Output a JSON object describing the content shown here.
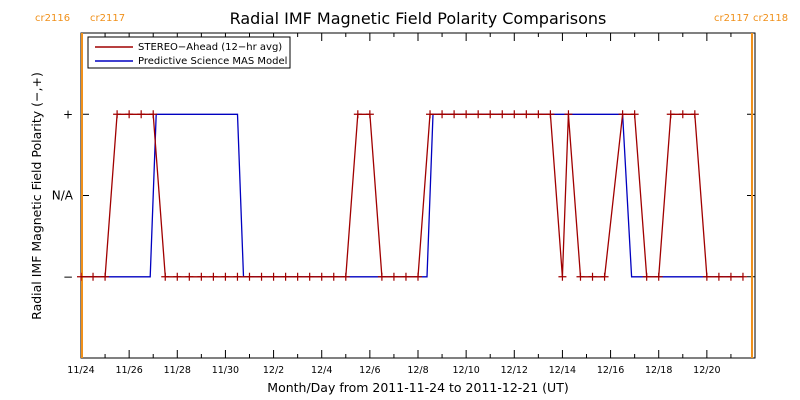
{
  "chart_data": {
    "type": "line",
    "title": "Radial IMF Magnetic Field Polarity Comparisons",
    "xlabel": "Month/Day from 2011-11-24 to 2011-12-21 (UT)",
    "ylabel": "Radial IMF Magnetic Field Polarity (−,+)",
    "x_unit": "days",
    "xlim": [
      "2011-11-24T00:00",
      "2011-12-22T00:00"
    ],
    "x_tick_values": [
      "2011-11-24",
      "2011-11-26",
      "2011-11-28",
      "2011-11-30",
      "2011-12-02",
      "2011-12-04",
      "2011-12-06",
      "2011-12-08",
      "2011-12-10",
      "2011-12-12",
      "2011-12-14",
      "2011-12-16",
      "2011-12-18",
      "2011-12-20"
    ],
    "x_tick_labels": [
      "11/24",
      "11/26",
      "11/28",
      "11/30",
      "12/2",
      "12/4",
      "12/6",
      "12/8",
      "12/10",
      "12/12",
      "12/14",
      "12/16",
      "12/18",
      "12/20"
    ],
    "y_ticks": [
      {
        "value": -1,
        "label": "−"
      },
      {
        "value": 0,
        "label": "N/A"
      },
      {
        "value": 1,
        "label": "+"
      }
    ],
    "ylim": [
      -2,
      2
    ],
    "legend_position": "top-left",
    "carrington_markers": [
      {
        "date": "2011-11-24T01:00",
        "left": "cr2116",
        "right": "cr2117",
        "label_side": "left"
      },
      {
        "date": "2011-12-21T21:00",
        "left": "cr2117",
        "right": "cr2118",
        "label_side": "right"
      }
    ],
    "series": [
      {
        "name": "STEREO−Ahead (12−hr avg)",
        "color": "#a00000",
        "marker": "plus",
        "points": [
          [
            "2011-11-24T00:00",
            -1
          ],
          [
            "2011-11-24T12:00",
            -1
          ],
          [
            "2011-11-25T00:00",
            -1
          ],
          [
            "2011-11-25T12:00",
            1
          ],
          [
            "2011-11-26T00:00",
            1
          ],
          [
            "2011-11-26T12:00",
            1
          ],
          [
            "2011-11-27T00:00",
            1
          ],
          [
            "2011-11-27T12:00",
            -1
          ],
          [
            "2011-11-28T00:00",
            -1
          ],
          [
            "2011-11-28T12:00",
            -1
          ],
          [
            "2011-11-29T00:00",
            -1
          ],
          [
            "2011-11-29T12:00",
            -1
          ],
          [
            "2011-11-30T00:00",
            -1
          ],
          [
            "2011-11-30T12:00",
            -1
          ],
          [
            "2011-12-01T00:00",
            -1
          ],
          [
            "2011-12-01T12:00",
            -1
          ],
          [
            "2011-12-02T00:00",
            -1
          ],
          [
            "2011-12-02T12:00",
            -1
          ],
          [
            "2011-12-03T00:00",
            -1
          ],
          [
            "2011-12-03T12:00",
            -1
          ],
          [
            "2011-12-04T00:00",
            -1
          ],
          [
            "2011-12-04T12:00",
            -1
          ],
          [
            "2011-12-05T00:00",
            -1
          ],
          [
            "2011-12-05T12:00",
            1
          ],
          [
            "2011-12-06T00:00",
            1
          ],
          [
            "2011-12-06T12:00",
            -1
          ],
          [
            "2011-12-07T00:00",
            -1
          ],
          [
            "2011-12-07T12:00",
            -1
          ],
          [
            "2011-12-08T00:00",
            -1
          ],
          [
            "2011-12-08T12:00",
            1
          ],
          [
            "2011-12-09T00:00",
            1
          ],
          [
            "2011-12-09T12:00",
            1
          ],
          [
            "2011-12-10T00:00",
            1
          ],
          [
            "2011-12-10T12:00",
            1
          ],
          [
            "2011-12-11T00:00",
            1
          ],
          [
            "2011-12-11T12:00",
            1
          ],
          [
            "2011-12-12T00:00",
            1
          ],
          [
            "2011-12-12T12:00",
            1
          ],
          [
            "2011-12-13T00:00",
            1
          ],
          [
            "2011-12-13T12:00",
            1
          ],
          [
            "2011-12-14T00:00",
            -1
          ],
          [
            "2011-12-14T06:00",
            1
          ],
          [
            "2011-12-14T18:00",
            -1
          ],
          [
            "2011-12-15T06:00",
            -1
          ],
          [
            "2011-12-15T18:00",
            -1
          ],
          [
            "2011-12-16T12:00",
            1
          ],
          [
            "2011-12-17T00:00",
            1
          ],
          [
            "2011-12-17T12:00",
            -1
          ],
          [
            "2011-12-18T00:00",
            -1
          ],
          [
            "2011-12-18T12:00",
            1
          ],
          [
            "2011-12-19T00:00",
            1
          ],
          [
            "2011-12-19T12:00",
            1
          ],
          [
            "2011-12-20T00:00",
            -1
          ],
          [
            "2011-12-20T12:00",
            -1
          ],
          [
            "2011-12-21T00:00",
            -1
          ],
          [
            "2011-12-21T12:00",
            -1
          ]
        ]
      },
      {
        "name": "Predictive Science MAS Model",
        "color": "#0000c0",
        "marker": "none",
        "points": [
          [
            "2011-11-24T00:00",
            -1
          ],
          [
            "2011-11-26T21:00",
            -1
          ],
          [
            "2011-11-27T03:00",
            1
          ],
          [
            "2011-11-30T12:00",
            1
          ],
          [
            "2011-11-30T18:00",
            -1
          ],
          [
            "2011-12-08T09:00",
            -1
          ],
          [
            "2011-12-08T15:00",
            1
          ],
          [
            "2011-12-16T12:00",
            1
          ],
          [
            "2011-12-16T21:00",
            -1
          ],
          [
            "2011-12-21T12:00",
            -1
          ]
        ]
      }
    ]
  }
}
